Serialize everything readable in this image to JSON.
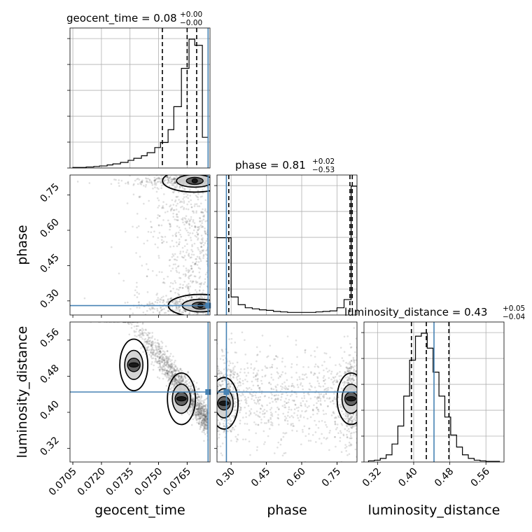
{
  "chart_data": {
    "type": "corner",
    "parameters": [
      "geocent_time",
      "phase",
      "luminosity_distance"
    ],
    "axis_labels": {
      "geocent_time": "geocent_time",
      "phase": "phase",
      "luminosity_distance": "luminosity_distance"
    },
    "titles": {
      "geocent_time": {
        "name": "geocent_time",
        "value": "0.08",
        "plus": "+0.00",
        "minus": "−0.00"
      },
      "phase": {
        "name": "phase",
        "value": "0.81",
        "plus": "+0.02",
        "minus": "−0.53"
      },
      "luminosity_distance": {
        "name": "luminosity_distance",
        "value": "0.43",
        "plus": "+0.05",
        "minus": "−0.04"
      }
    },
    "ranges": {
      "geocent_time": [
        0.07035,
        0.0777
      ],
      "phase": [
        0.24,
        0.835
      ],
      "luminosity_distance": [
        0.29,
        0.6
      ]
    },
    "ticks": {
      "geocent_time": {
        "values": [
          0.0705,
          0.072,
          0.0735,
          0.075,
          0.0765
        ],
        "labels": [
          "0.0705",
          "0.0720",
          "0.0735",
          "0.0750",
          "0.0765"
        ]
      },
      "phase": {
        "values": [
          0.3,
          0.45,
          0.6,
          0.75
        ],
        "labels": [
          "0.30",
          "0.45",
          "0.60",
          "0.75"
        ]
      },
      "luminosity_distance": {
        "values": [
          0.32,
          0.4,
          0.48,
          0.56
        ],
        "labels": [
          "0.32",
          "0.40",
          "0.48",
          "0.56"
        ]
      }
    },
    "truths": {
      "geocent_time": 0.0776,
      "phase": 0.28,
      "luminosity_distance": 0.445
    },
    "quantiles": {
      "geocent_time": [
        0.0752,
        0.0765,
        0.077
      ],
      "phase": [
        0.29,
        0.805,
        0.815
      ],
      "luminosity_distance": [
        0.395,
        0.428,
        0.478
      ]
    },
    "histograms": {
      "geocent_time": {
        "edges": [
          0.0705,
          0.0709,
          0.0712,
          0.0716,
          0.0719,
          0.0723,
          0.0726,
          0.073,
          0.0734,
          0.0737,
          0.0741,
          0.0744,
          0.0748,
          0.0751,
          0.0755,
          0.0758,
          0.0762,
          0.0766,
          0.0769,
          0.0773,
          0.0776
        ],
        "counts": [
          1,
          1,
          2,
          3,
          4,
          6,
          8,
          11,
          15,
          19,
          24,
          30,
          40,
          50,
          75,
          120,
          195,
          252,
          240,
          60
        ]
      },
      "phase": {
        "edges": [
          0.24,
          0.27,
          0.3,
          0.33,
          0.36,
          0.39,
          0.42,
          0.45,
          0.48,
          0.51,
          0.54,
          0.57,
          0.6,
          0.63,
          0.66,
          0.69,
          0.72,
          0.75,
          0.78,
          0.81,
          0.835
        ],
        "counts": [
          150,
          150,
          35,
          20,
          14,
          12,
          10,
          9,
          7,
          6,
          5,
          5,
          5,
          5,
          6,
          7,
          8,
          14,
          30,
          250
        ]
      },
      "luminosity_distance": {
        "edges": [
          0.3,
          0.313,
          0.326,
          0.339,
          0.352,
          0.365,
          0.378,
          0.391,
          0.404,
          0.417,
          0.43,
          0.443,
          0.456,
          0.469,
          0.482,
          0.495,
          0.508,
          0.521,
          0.534,
          0.547,
          0.56,
          0.575,
          0.59
        ],
        "counts": [
          2,
          3,
          6,
          12,
          30,
          60,
          110,
          170,
          210,
          215,
          190,
          150,
          110,
          75,
          45,
          25,
          12,
          6,
          3,
          2,
          1,
          1
        ]
      }
    },
    "contour_peaks": {
      "phase_vs_geocent_time": [
        [
          0.0769,
          0.81
        ],
        [
          0.0772,
          0.28
        ]
      ],
      "luminosity_distance_vs_geocent_time": [
        [
          0.0737,
          0.505
        ],
        [
          0.0762,
          0.43
        ]
      ],
      "luminosity_distance_vs_phase": [
        [
          0.81,
          0.43
        ],
        [
          0.27,
          0.42
        ]
      ]
    },
    "colors": {
      "truth": "#4682b4",
      "hist": "#000000",
      "points": "#555555",
      "grid": "#b0b0b0"
    }
  }
}
